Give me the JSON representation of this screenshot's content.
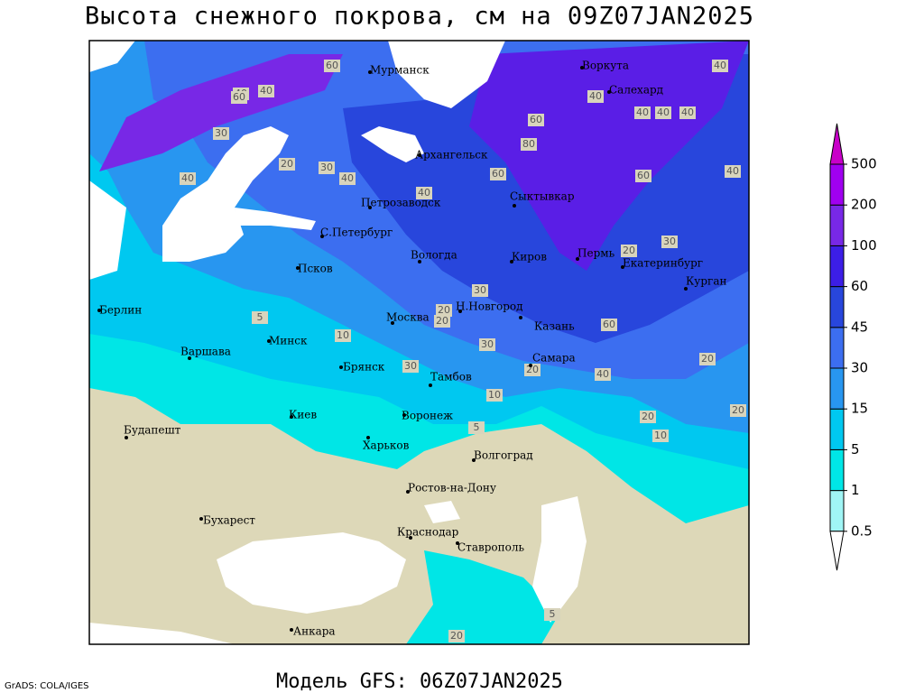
{
  "title": "Высота снежного покрова, см на 09Z07JAN2025",
  "subtitle": "Модель GFS: 06Z07JAN2025",
  "credit": "GrADS: COLA/IGES",
  "legend": {
    "levels": [
      0.5,
      1,
      5,
      15,
      30,
      45,
      60,
      100,
      200,
      500
    ],
    "colors": [
      "#ffffff",
      "#a0f5f5",
      "#00e6e6",
      "#00c8f0",
      "#2896f0",
      "#3c6ef0",
      "#2846dc",
      "#3c1ee6",
      "#7828e6",
      "#a000f0",
      "#c800c8"
    ]
  },
  "cities": [
    "Мурманск",
    "Воркута",
    "Салехард",
    "Архангельск",
    "Петрозаводск",
    "Сыктывкар",
    "С.Петербург",
    "Вологда",
    "Киров",
    "Пермь",
    "Екатеринбург",
    "Курган",
    "Псков",
    "Н.Новгород",
    "Москва",
    "Казань",
    "Берлин",
    "Минск",
    "Варшава",
    "Брянск",
    "Тамбов",
    "Самара",
    "Киев",
    "Воронеж",
    "Будапешт",
    "Харьков",
    "Волгоград",
    "Ростов-на-Дону",
    "Бухарест",
    "Краснодар",
    "Ставрополь",
    "Анкара"
  ],
  "contour_labels": [
    60,
    40,
    60,
    40,
    30,
    20,
    30,
    40,
    40,
    60,
    40,
    80,
    60,
    40,
    60,
    40,
    40,
    40,
    40,
    20,
    30,
    30,
    20,
    40,
    60,
    5,
    10,
    20,
    30,
    20,
    40,
    30,
    20,
    10,
    20,
    20,
    5,
    10,
    5,
    20
  ]
}
